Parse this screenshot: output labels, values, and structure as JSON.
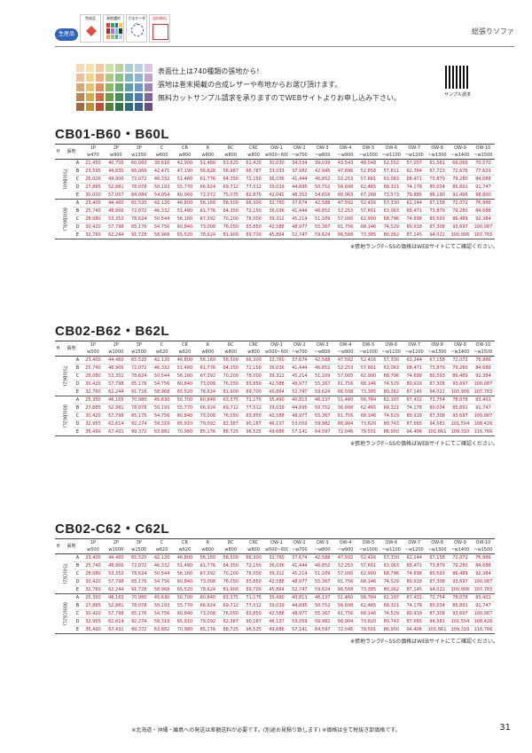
{
  "header": {
    "made_badge": "生産品",
    "icon1": "完成品",
    "icon2": "張地選択",
    "icon3": "寸法オーダー",
    "icon4": "送料無料",
    "category": "総張りソファ"
  },
  "intro": {
    "line1": "表面仕上は740種類の張地から!",
    "line2": "張地は巻末掲載の合成レザーや布地からお選び頂けます。",
    "line3": "無料カットサンプル請求を承りますのでWEBサイトよりお申し込み下さい。",
    "qr_label": "サンプル請求"
  },
  "columns": [
    "1P",
    "2P",
    "3P",
    "C",
    "CR",
    "R",
    "RC",
    "CRC",
    "OW-1",
    "OW-2",
    "OW-3",
    "OW-4",
    "OW-5",
    "OW-6",
    "OW-7",
    "OW-8",
    "OW-9",
    "OW-10"
  ],
  "h_label": "H",
  "fabric_label": "張地",
  "sections": [
    {
      "title": "CB01-B60・B60L",
      "widths": [
        "w470",
        "w900",
        "w1350",
        "w600",
        "w800",
        "w800",
        "w800",
        "w800",
        "w500~600",
        "~w700",
        "~w800",
        "~w900",
        "~w1000",
        "~w1100",
        "~w1200",
        "~w1300",
        "~w1400",
        "~w1500"
      ],
      "groups": [
        {
          "label": "750(B60)",
          "rows": [
            [
              "A",
              "21,450",
              "40,755",
              "60,060",
              "38,610",
              "42,900",
              "51,480",
              "53,625",
              "61,425",
              "30,030",
              "34,534",
              "39,039",
              "43,543",
              "48,048",
              "52,552",
              "57,057",
              "61,561",
              "66,066",
              "70,570"
            ],
            [
              "B",
              "23,595",
              "44,830",
              "66,066",
              "42,471",
              "47,190",
              "56,628",
              "58,987",
              "66,787",
              "33,033",
              "37,982",
              "42,945",
              "47,896",
              "52,858",
              "57,811",
              "62,764",
              "67,723",
              "72,676",
              "77,629"
            ],
            [
              "C",
              "26,026",
              "49,906",
              "72,072",
              "46,332",
              "51,480",
              "61,776",
              "64,350",
              "72,150",
              "36,036",
              "41,444",
              "46,852",
              "52,253",
              "57,661",
              "63,063",
              "68,471",
              "73,879",
              "79,280",
              "84,688"
            ],
            [
              "D",
              "27,885",
              "52,981",
              "78,078",
              "50,193",
              "55,770",
              "66,924",
              "69,712",
              "77,512",
              "39,039",
              "44,895",
              "50,752",
              "56,608",
              "62,465",
              "68,321",
              "74,178",
              "80,034",
              "85,891",
              "91,747"
            ],
            [
              "E",
              "30,030",
              "57,057",
              "84,084",
              "54,054",
              "60,060",
              "72,072",
              "75,075",
              "82,875",
              "42,042",
              "48,353",
              "54,658",
              "60,963",
              "67,268",
              "73,573",
              "79,885",
              "86,190",
              "92,495",
              "98,800"
            ]
          ]
        },
        {
          "label": "800(B60L)",
          "rows": [
            [
              "A",
              "23,400",
              "44,460",
              "65,520",
              "42,120",
              "46,800",
              "56,160",
              "58,500",
              "66,300",
              "32,760",
              "37,674",
              "42,588",
              "47,502",
              "52,416",
              "57,330",
              "62,244",
              "67,158",
              "72,072",
              "76,986"
            ],
            [
              "B",
              "25,740",
              "48,906",
              "72,072",
              "46,332",
              "51,480",
              "61,776",
              "64,350",
              "72,150",
              "36,036",
              "41,444",
              "46,852",
              "52,253",
              "57,661",
              "63,063",
              "68,471",
              "73,879",
              "79,280",
              "84,688"
            ],
            [
              "C",
              "28,080",
              "53,352",
              "78,624",
              "50,544",
              "56,160",
              "67,392",
              "70,200",
              "78,000",
              "39,312",
              "45,214",
              "51,109",
              "57,005",
              "62,900",
              "68,796",
              "74,698",
              "80,593",
              "86,489",
              "92,384"
            ],
            [
              "D",
              "30,420",
              "57,798",
              "85,176",
              "54,756",
              "60,840",
              "73,008",
              "76,050",
              "83,850",
              "42,588",
              "48,977",
              "55,367",
              "61,756",
              "68,146",
              "74,529",
              "80,918",
              "87,308",
              "93,697",
              "100,087"
            ],
            [
              "E",
              "32,760",
              "62,244",
              "91,728",
              "58,968",
              "65,520",
              "78,624",
              "81,900",
              "89,700",
              "45,864",
              "52,747",
              "59,624",
              "66,508",
              "73,385",
              "80,262",
              "87,145",
              "94,022",
              "100,906",
              "107,783"
            ]
          ]
        }
      ],
      "note": "※張地ランクF~SSの価格はWEBサイトにてご確認ください。"
    },
    {
      "title": "CB02-B62・B62L",
      "widths": [
        "w500",
        "w1000",
        "w1500",
        "w620",
        "w620",
        "w800",
        "w800",
        "w800",
        "w500~600",
        "~w700",
        "~w800",
        "~w900",
        "~w1000",
        "~w1100",
        "~w1200",
        "~w1300",
        "~w1400",
        "~w1500"
      ],
      "groups": [
        {
          "label": "750(B62)",
          "rows": [
            [
              "A",
              "23,400",
              "44,460",
              "65,520",
              "42,120",
              "46,800",
              "56,160",
              "58,500",
              "66,300",
              "32,760",
              "37,674",
              "42,588",
              "47,502",
              "52,416",
              "57,330",
              "62,244",
              "67,158",
              "72,072",
              "76,986"
            ],
            [
              "B",
              "25,740",
              "48,906",
              "72,072",
              "46,332",
              "51,480",
              "61,776",
              "64,350",
              "72,150",
              "36,036",
              "41,444",
              "46,852",
              "52,253",
              "57,661",
              "63,063",
              "68,471",
              "73,879",
              "79,280",
              "84,688"
            ],
            [
              "C",
              "28,080",
              "53,352",
              "78,624",
              "50,544",
              "56,160",
              "67,392",
              "70,200",
              "78,000",
              "39,312",
              "45,214",
              "51,109",
              "57,005",
              "62,900",
              "68,796",
              "74,698",
              "80,593",
              "86,489",
              "92,384"
            ],
            [
              "D",
              "30,420",
              "57,798",
              "85,176",
              "54,756",
              "60,840",
              "73,008",
              "76,050",
              "83,850",
              "42,588",
              "48,977",
              "55,367",
              "61,756",
              "68,146",
              "74,529",
              "80,918",
              "87,308",
              "93,697",
              "100,087"
            ],
            [
              "E",
              "32,760",
              "62,244",
              "91,728",
              "58,968",
              "65,520",
              "78,624",
              "81,900",
              "89,700",
              "45,864",
              "52,747",
              "59,624",
              "66,508",
              "73,385",
              "80,262",
              "87,145",
              "94,022",
              "100,906",
              "107,783"
            ]
          ]
        },
        {
          "label": "800(B62L)",
          "rows": [
            [
              "A",
              "25,350",
              "48,165",
              "70,980",
              "45,630",
              "50,700",
              "60,840",
              "63,375",
              "71,175",
              "35,490",
              "40,813",
              "46,137",
              "51,460",
              "56,784",
              "62,107",
              "67,431",
              "72,754",
              "78,078",
              "83,401"
            ],
            [
              "B",
              "27,885",
              "52,981",
              "78,078",
              "50,193",
              "55,770",
              "66,924",
              "69,712",
              "77,512",
              "39,039",
              "44,895",
              "50,752",
              "56,608",
              "62,465",
              "68,321",
              "74,178",
              "80,034",
              "85,891",
              "91,747"
            ],
            [
              "C",
              "30,420",
              "57,798",
              "85,176",
              "54,756",
              "60,840",
              "73,008",
              "76,050",
              "83,850",
              "42,588",
              "48,977",
              "55,367",
              "61,756",
              "68,146",
              "74,529",
              "80,918",
              "87,308",
              "93,697",
              "100,087"
            ],
            [
              "D",
              "32,955",
              "62,614",
              "92,274",
              "59,319",
              "65,910",
              "79,092",
              "82,387",
              "90,187",
              "46,137",
              "53,059",
              "59,982",
              "66,904",
              "73,820",
              "80,743",
              "87,665",
              "94,581",
              "101,504",
              "108,426"
            ],
            [
              "E",
              "35,490",
              "67,431",
              "99,372",
              "63,882",
              "70,980",
              "85,176",
              "88,725",
              "96,525",
              "49,686",
              "57,141",
              "64,597",
              "72,046",
              "79,501",
              "86,950",
              "94,406",
              "101,861",
              "109,310",
              "116,766"
            ]
          ]
        }
      ],
      "note": "※張地ランクF~SSの価格はWEBサイトにてご確認ください。"
    },
    {
      "title": "CB02-C62・C62L",
      "widths": [
        "w500",
        "w1000",
        "w1500",
        "w620",
        "w620",
        "w800",
        "w800",
        "w800",
        "w500~600",
        "~w700",
        "~w800",
        "~w900",
        "~w1000",
        "~w1100",
        "~w1200",
        "~w1300",
        "~w1400",
        "~w1500"
      ],
      "groups": [
        {
          "label": "750(C62)",
          "rows": [
            [
              "A",
              "23,400",
              "44,460",
              "65,520",
              "42,120",
              "46,800",
              "56,160",
              "58,500",
              "66,300",
              "32,760",
              "37,674",
              "42,588",
              "47,502",
              "52,416",
              "57,330",
              "62,244",
              "67,158",
              "72,072",
              "76,986"
            ],
            [
              "B",
              "25,740",
              "48,906",
              "72,072",
              "46,332",
              "51,480",
              "61,776",
              "64,350",
              "72,150",
              "36,036",
              "41,444",
              "46,852",
              "52,253",
              "57,661",
              "63,063",
              "68,471",
              "73,879",
              "79,280",
              "84,688"
            ],
            [
              "C",
              "28,080",
              "53,352",
              "78,624",
              "50,544",
              "56,160",
              "67,392",
              "70,200",
              "78,000",
              "39,312",
              "45,214",
              "51,109",
              "57,005",
              "62,900",
              "68,796",
              "74,698",
              "80,593",
              "86,489",
              "92,384"
            ],
            [
              "D",
              "30,420",
              "57,798",
              "85,176",
              "54,756",
              "60,840",
              "73,008",
              "76,050",
              "83,850",
              "42,588",
              "48,977",
              "55,367",
              "61,756",
              "68,146",
              "74,529",
              "80,918",
              "87,308",
              "93,697",
              "100,087"
            ],
            [
              "E",
              "32,760",
              "62,244",
              "91,728",
              "58,968",
              "65,520",
              "78,624",
              "81,900",
              "89,700",
              "45,864",
              "52,747",
              "59,624",
              "66,508",
              "73,385",
              "80,262",
              "87,145",
              "94,022",
              "100,906",
              "107,783"
            ]
          ]
        },
        {
          "label": "800(C62L)",
          "rows": [
            [
              "A",
              "25,350",
              "48,165",
              "70,980",
              "45,630",
              "50,700",
              "60,840",
              "63,375",
              "71,175",
              "35,490",
              "40,813",
              "46,137",
              "51,460",
              "56,784",
              "62,107",
              "67,431",
              "72,754",
              "78,078",
              "83,401"
            ],
            [
              "B",
              "27,885",
              "52,981",
              "78,078",
              "50,193",
              "55,770",
              "66,924",
              "69,712",
              "77,512",
              "39,039",
              "44,895",
              "50,752",
              "56,608",
              "62,465",
              "68,321",
              "74,178",
              "80,034",
              "85,891",
              "91,747"
            ],
            [
              "C",
              "30,420",
              "57,798",
              "85,176",
              "54,756",
              "60,840",
              "73,008",
              "76,050",
              "83,850",
              "42,588",
              "48,977",
              "55,367",
              "61,756",
              "68,146",
              "74,529",
              "80,918",
              "87,308",
              "93,697",
              "100,087"
            ],
            [
              "D",
              "32,955",
              "62,614",
              "92,274",
              "59,319",
              "65,910",
              "79,092",
              "82,387",
              "90,187",
              "46,137",
              "53,059",
              "59,982",
              "66,904",
              "73,820",
              "80,743",
              "87,665",
              "94,581",
              "101,504",
              "108,426"
            ],
            [
              "E",
              "35,490",
              "67,431",
              "99,372",
              "63,882",
              "70,980",
              "85,176",
              "88,725",
              "96,525",
              "49,686",
              "57,141",
              "64,597",
              "72,046",
              "79,501",
              "86,950",
              "94,406",
              "101,861",
              "109,310",
              "116,766"
            ]
          ]
        }
      ],
      "note": "※張地ランクF~SSの価格はWEBサイトにてご確認ください。"
    }
  ],
  "footer": "※北海道・沖縄・離島への発送は差額送料が必要です。(別途お見積り致します) ※価格は全て税抜き卸価格です。",
  "page_number": "31",
  "colors": {
    "accent": "#c0182e",
    "badge": "#2f64b8"
  }
}
